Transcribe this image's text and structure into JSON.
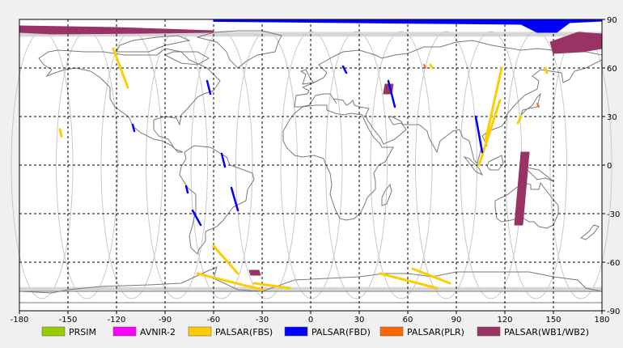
{
  "map": {
    "x_ticks": [
      "-180",
      "-150",
      "-120",
      "-90",
      "-60",
      "-30",
      "0",
      "30",
      "60",
      "90",
      "120",
      "150",
      "180"
    ],
    "y_ticks": [
      "90",
      "60",
      "30",
      "0",
      "-30",
      "-60",
      "-90"
    ],
    "x_range": [
      -180,
      180
    ],
    "y_range": [
      -90,
      90
    ],
    "grid": "dashed",
    "background": "#ffffff"
  },
  "legend": {
    "items": [
      {
        "label": "PRSIM",
        "color": "#99cc00"
      },
      {
        "label": "AVNIR-2",
        "color": "#ff00ff"
      },
      {
        "label": "PALSAR(FBS)",
        "color": "#ffcc00"
      },
      {
        "label": "PALSAR(FBD)",
        "color": "#0000ff"
      },
      {
        "label": "PALSAR(PLR)",
        "color": "#ff6600"
      },
      {
        "label": "PALSAR(WB1/WB2)",
        "color": "#993366"
      }
    ]
  },
  "scenes": {
    "fbs": [
      {
        "from": [
          -122,
          72
        ],
        "to": [
          -113,
          48
        ]
      },
      {
        "from": [
          -155,
          22
        ],
        "to": [
          -154,
          18
        ]
      },
      {
        "from": [
          -60,
          -50
        ],
        "to": [
          -45,
          -67
        ]
      },
      {
        "from": [
          -70,
          -67
        ],
        "to": [
          -30,
          -77
        ]
      },
      {
        "from": [
          -35,
          -73
        ],
        "to": [
          -13,
          -76
        ]
      },
      {
        "from": [
          43,
          -67
        ],
        "to": [
          78,
          -76
        ]
      },
      {
        "from": [
          63,
          -64
        ],
        "to": [
          86,
          -73
        ]
      },
      {
        "from": [
          118,
          60
        ],
        "to": [
          108,
          15
        ]
      },
      {
        "from": [
          104,
          0
        ],
        "to": [
          117,
          40
        ]
      },
      {
        "from": [
          130,
          30
        ],
        "to": [
          128,
          26
        ]
      },
      {
        "from": [
          145,
          60
        ],
        "to": [
          146,
          57
        ]
      },
      {
        "from": [
          74,
          62
        ],
        "to": [
          75,
          60
        ]
      }
    ],
    "fbd": [
      {
        "from": [
          -64,
          52
        ],
        "to": [
          -62,
          44
        ]
      },
      {
        "from": [
          -110,
          25
        ],
        "to": [
          -109,
          21
        ]
      },
      {
        "from": [
          -55,
          7
        ],
        "to": [
          -53,
          -1
        ]
      },
      {
        "from": [
          -77,
          -13
        ],
        "to": [
          -76,
          -17
        ]
      },
      {
        "from": [
          -49,
          -14
        ],
        "to": [
          -45,
          -28
        ]
      },
      {
        "from": [
          -73,
          -28
        ],
        "to": [
          -68,
          -37
        ]
      },
      {
        "from": [
          20,
          61
        ],
        "to": [
          22,
          57
        ]
      },
      {
        "from": [
          48,
          52
        ],
        "to": [
          52,
          36
        ]
      },
      {
        "from": [
          102,
          30
        ],
        "to": [
          106,
          8
        ]
      }
    ],
    "plr": [
      {
        "from": [
          140,
          38
        ],
        "to": [
          141,
          36
        ]
      },
      {
        "from": [
          70,
          62
        ],
        "to": [
          71,
          60
        ]
      }
    ],
    "wb": [
      {
        "poly": [
          [
            -180,
            86
          ],
          [
            -120,
            85
          ],
          [
            -60,
            83
          ],
          [
            -60,
            82
          ],
          [
            -100,
            81.5
          ],
          [
            -160,
            81
          ],
          [
            -180,
            82
          ]
        ]
      },
      {
        "poly": [
          [
            148,
            76
          ],
          [
            165,
            82
          ],
          [
            180,
            81
          ],
          [
            180,
            72
          ],
          [
            168,
            70
          ],
          [
            150,
            69
          ]
        ]
      },
      {
        "poly": [
          [
            46,
            50
          ],
          [
            51,
            50
          ],
          [
            50,
            44
          ],
          [
            45,
            44
          ]
        ]
      },
      {
        "poly": [
          [
            126,
            -37
          ],
          [
            131,
            -37
          ],
          [
            135,
            8
          ],
          [
            130,
            8
          ]
        ]
      },
      {
        "poly": [
          [
            -38,
            -65
          ],
          [
            -32,
            -65
          ],
          [
            -31,
            -68
          ],
          [
            -37,
            -68
          ]
        ]
      }
    ],
    "fbd_arctic": [
      {
        "poly": [
          [
            -60,
            89.5
          ],
          [
            180,
            89.5
          ],
          [
            180,
            89
          ],
          [
            160,
            88
          ],
          [
            152,
            82
          ],
          [
            140,
            82
          ],
          [
            130,
            87
          ],
          [
            -60,
            88.8
          ]
        ]
      }
    ]
  }
}
